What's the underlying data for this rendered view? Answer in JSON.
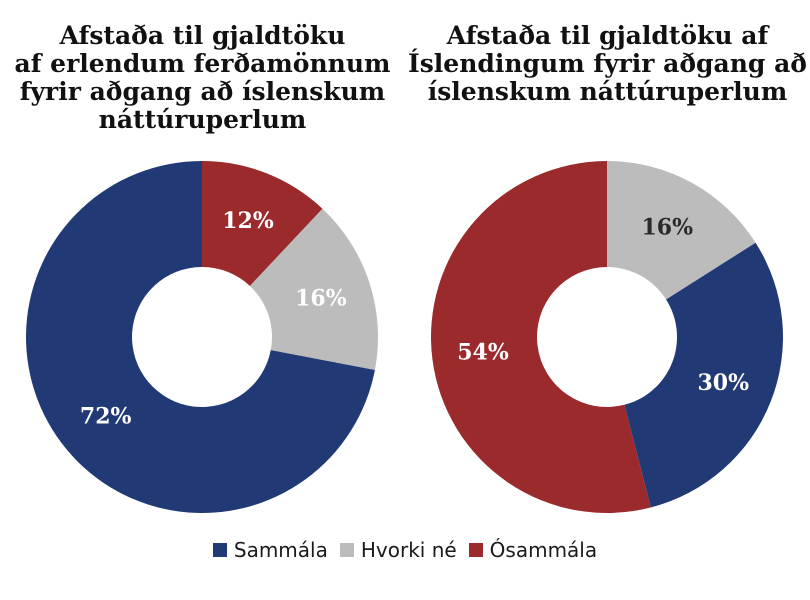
{
  "chart_data": [
    {
      "type": "pie",
      "title_lines": [
        "Afstaða til gjaldtöku",
        "af erlendum ferðamönnum",
        "fyrir aðgang að íslenskum",
        "náttúruperlum"
      ],
      "slices": [
        {
          "name": "Ósammála",
          "value": 12,
          "label": "12%",
          "color": "#9b2a2d",
          "label_color": "#ffffff"
        },
        {
          "name": "Hvorki né",
          "value": 16,
          "label": "16%",
          "color": "#bcbcbc",
          "label_color": "#ffffff"
        },
        {
          "name": "Sammála",
          "value": 72,
          "label": "72%",
          "color": "#213a75",
          "label_color": "#ffffff"
        }
      ]
    },
    {
      "type": "pie",
      "title_lines": [
        "Afstaða til gjaldtöku af",
        "Íslendingum fyrir aðgang að",
        "íslenskum náttúruperlum"
      ],
      "slices": [
        {
          "name": "Hvorki né",
          "value": 16,
          "label": "16%",
          "color": "#bcbcbc",
          "label_color": "#2a2a2a"
        },
        {
          "name": "Sammála",
          "value": 30,
          "label": "30%",
          "color": "#213a75",
          "label_color": "#ffffff"
        },
        {
          "name": "Ósammála",
          "value": 54,
          "label": "54%",
          "color": "#9b2a2d",
          "label_color": "#ffffff"
        }
      ]
    }
  ],
  "legend": [
    {
      "label": "Sammála",
      "color": "#213a75"
    },
    {
      "label": "Hvorki né",
      "color": "#bcbcbc"
    },
    {
      "label": "Ósammála",
      "color": "#9b2a2d"
    }
  ]
}
